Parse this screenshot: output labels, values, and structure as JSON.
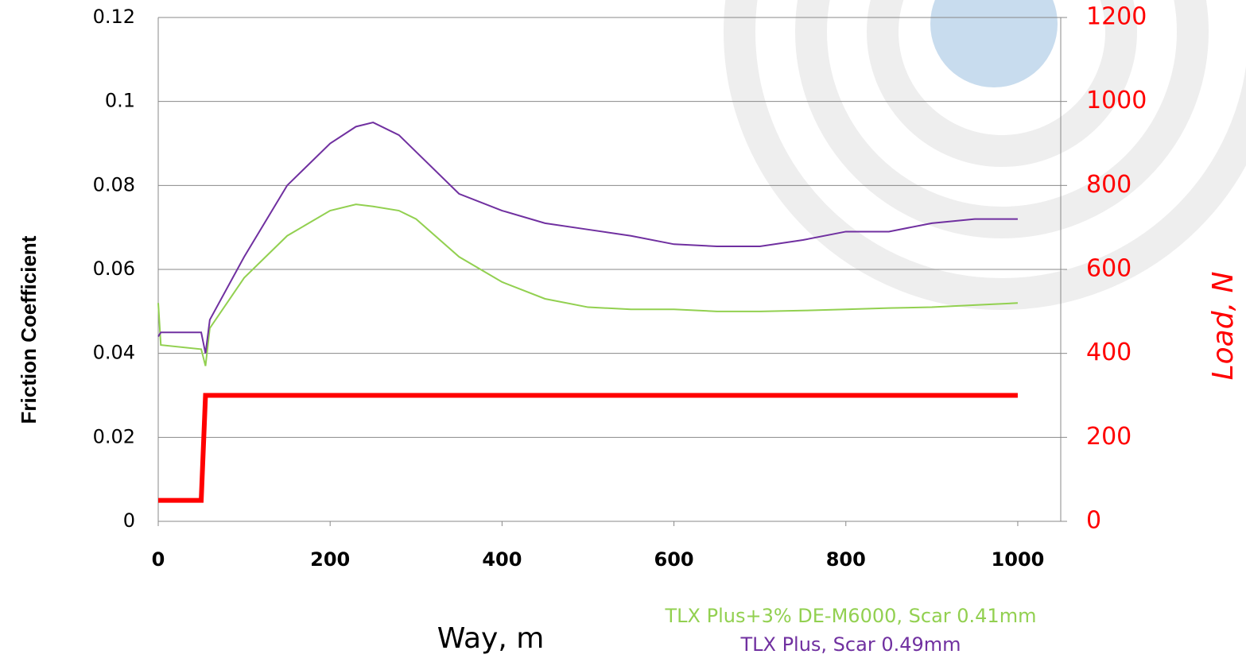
{
  "chart_data": {
    "type": "line",
    "x_label": "Way, m",
    "y_label": "Friction Coefficient",
    "y2_label": "Load, N",
    "x": [
      0,
      3,
      50,
      55,
      60,
      100,
      150,
      200,
      230,
      250,
      280,
      300,
      350,
      400,
      450,
      500,
      550,
      600,
      650,
      700,
      750,
      800,
      850,
      900,
      950,
      1000
    ],
    "series": [
      {
        "name": "TLX Plus+3% DE-M6000, Scar 0.41mm",
        "color": "#92d050",
        "values": [
          0.052,
          0.042,
          0.041,
          0.037,
          0.046,
          0.058,
          0.068,
          0.074,
          0.0755,
          0.075,
          0.074,
          0.072,
          0.063,
          0.057,
          0.053,
          0.051,
          0.0505,
          0.0505,
          0.05,
          0.05,
          0.0502,
          0.0505,
          0.0508,
          0.051,
          0.0515,
          0.052
        ]
      },
      {
        "name": "TLX Plus, Scar 0.49mm",
        "color": "#7030a0",
        "values": [
          0.044,
          0.045,
          0.045,
          0.04,
          0.048,
          0.063,
          0.08,
          0.09,
          0.094,
          0.095,
          0.092,
          0.088,
          0.078,
          0.074,
          0.071,
          0.0695,
          0.068,
          0.066,
          0.0655,
          0.0655,
          0.067,
          0.069,
          0.069,
          0.071,
          0.072,
          0.072
        ]
      },
      {
        "color": "#ff0000",
        "axis": "y2",
        "values": [
          50,
          50,
          50,
          300,
          300,
          300,
          300,
          300,
          300,
          300,
          300,
          300,
          300,
          300,
          300,
          300,
          300,
          300,
          300,
          300,
          300,
          300,
          300,
          300,
          300,
          300
        ]
      }
    ],
    "xlim": [
      0,
      1050
    ],
    "xticks": [
      0,
      200,
      400,
      600,
      800,
      1000
    ],
    "ylim": [
      0,
      0.12
    ],
    "yticks": [
      0,
      0.02,
      0.04,
      0.06,
      0.08,
      0.1,
      0.12
    ],
    "y2lim": [
      0,
      1200
    ],
    "y2ticks": [
      0,
      200,
      400,
      600,
      800,
      1000,
      1200
    ],
    "y2_color": "#ff0000",
    "grid": true
  }
}
